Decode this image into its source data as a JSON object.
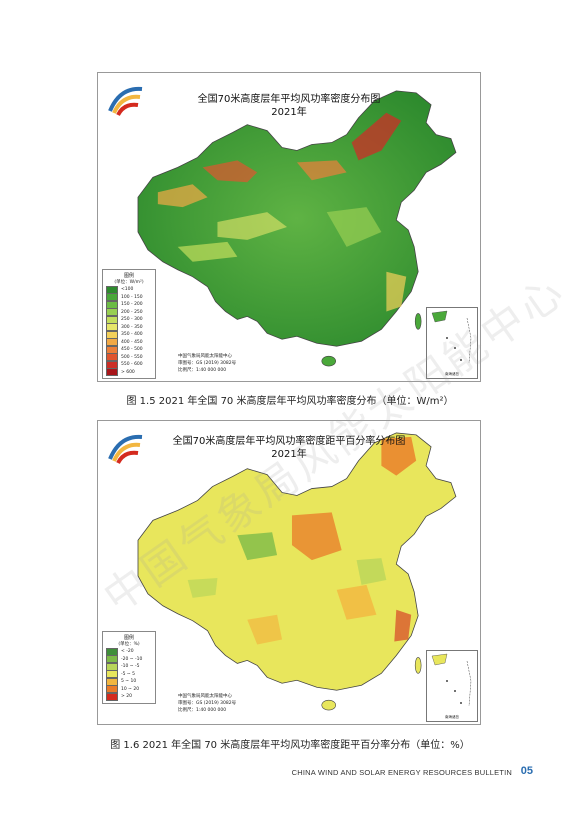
{
  "figure1": {
    "title_line1": "全国70米高度层年平均风功率密度分布图",
    "title_line2": "2021年",
    "legend": {
      "title": "图例",
      "unit": "(单位：W/m²)",
      "items": [
        {
          "label": "<100",
          "color": "#2e8b2e"
        },
        {
          "label": "100 - 150",
          "color": "#4aa83a"
        },
        {
          "label": "150 - 200",
          "color": "#6cbc45"
        },
        {
          "label": "200 - 250",
          "color": "#98cf52"
        },
        {
          "label": "250 - 300",
          "color": "#c3de5d"
        },
        {
          "label": "300 - 350",
          "color": "#e6e66a"
        },
        {
          "label": "350 - 400",
          "color": "#f3d05a"
        },
        {
          "label": "400 - 450",
          "color": "#f2a946"
        },
        {
          "label": "450 - 500",
          "color": "#ec7f3a"
        },
        {
          "label": "500 - 550",
          "color": "#e0552f"
        },
        {
          "label": "550 - 600",
          "color": "#cc2f27"
        },
        {
          "label": "> 600",
          "color": "#a8151a"
        }
      ]
    },
    "credit": [
      "中国气象局风能太阳能中心",
      "审图号：GS (2019) 3082号",
      "比例尺：1:40 000 000"
    ],
    "inset_label": "南海诸岛",
    "caption": "图 1.5   2021 年全国 70 米高度层年平均风功率密度分布（单位：W/m²）"
  },
  "figure2": {
    "title_line1": "全国70米高度层年平均风功率密度距平百分率分布图",
    "title_line2": "2021年",
    "legend": {
      "title": "图例",
      "unit": "(单位：%)",
      "items": [
        {
          "label": "< -20",
          "color": "#3f8f3a"
        },
        {
          "label": "-20 ~ -10",
          "color": "#7dbb48"
        },
        {
          "label": "-10 ~ -5",
          "color": "#b9d65a"
        },
        {
          "label": "-5 ~ 5",
          "color": "#e8e65c"
        },
        {
          "label": "5 ~ 10",
          "color": "#f2b640"
        },
        {
          "label": "10 ~ 20",
          "color": "#ea7a28"
        },
        {
          "label": "> 20",
          "color": "#d42a1e"
        }
      ]
    },
    "credit": [
      "中国气象局风能太阳能中心",
      "审图号：GS (2019) 3082号",
      "比例尺：1:40 000 000"
    ],
    "inset_label": "南海诸岛",
    "caption": "图 1.6   2021 年全国 70 米高度层年平均风功率密度距平百分率分布（单位：%）"
  },
  "watermark": "中国气象局风能太阳能中心",
  "footer": {
    "text": "CHINA WIND AND SOLAR ENERGY RESOURCES BULLETIN",
    "page": "05"
  }
}
